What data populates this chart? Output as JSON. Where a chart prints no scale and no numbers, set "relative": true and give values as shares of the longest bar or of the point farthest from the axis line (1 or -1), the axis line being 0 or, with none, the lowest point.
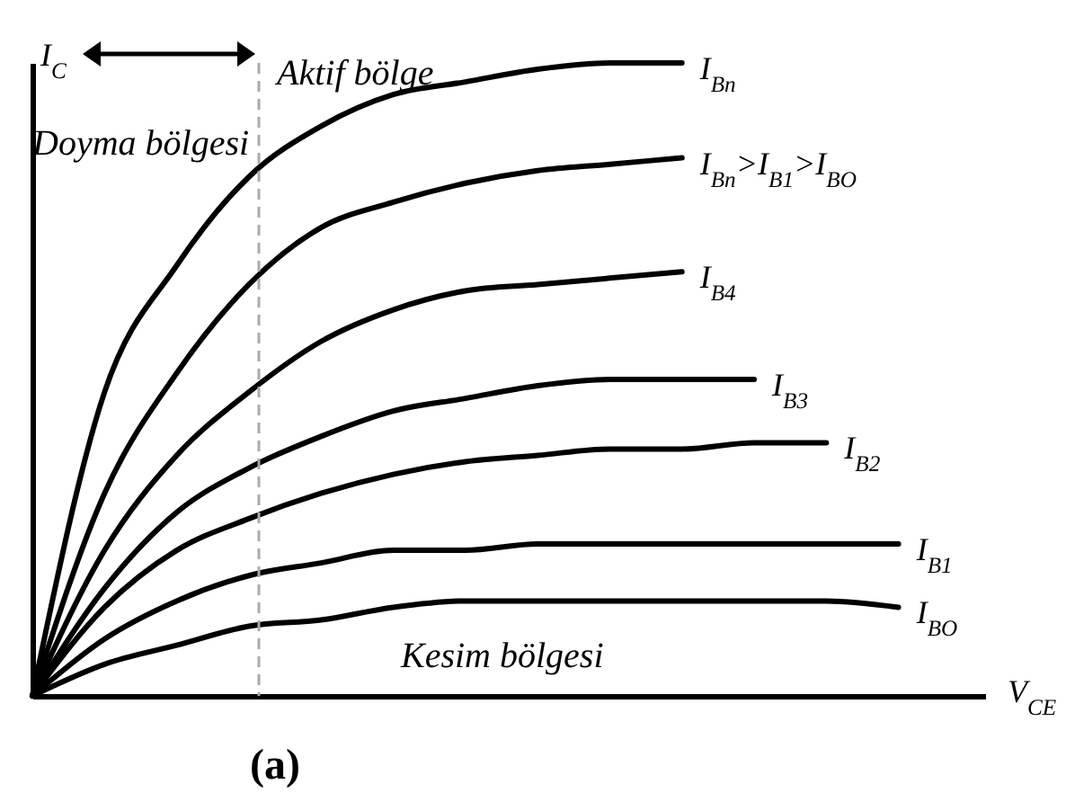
{
  "chart_data": {
    "type": "line",
    "relative": true,
    "title": "(a)",
    "xlabel": "V$_{CE}$",
    "ylabel": "I$_{C}$",
    "categories": [
      null,
      null,
      null,
      null,
      null,
      null,
      null,
      null,
      null,
      null,
      null,
      null,
      null
    ],
    "series": [
      {
        "name": "I$_{Bn}$",
        "color": "#000000",
        "values": [
          0,
          0.48,
          0.68,
          0.82,
          0.9,
          0.95,
          0.97,
          0.99,
          1.0,
          1.0,
          null,
          null,
          null
        ]
      },
      {
        "name": "I$_{Bn}$>I$_{B1}$>I$_{BO}$",
        "color": "#000000",
        "values": [
          0,
          0.32,
          0.51,
          0.65,
          0.74,
          0.78,
          0.81,
          0.83,
          0.84,
          0.85,
          null,
          null,
          null
        ]
      },
      {
        "name": "I$_{B4}$",
        "color": "#000000",
        "values": [
          0,
          0.23,
          0.38,
          0.48,
          0.56,
          0.61,
          0.64,
          0.65,
          0.66,
          0.67,
          null,
          null,
          null
        ]
      },
      {
        "name": "I$_{B3}$",
        "color": "#000000",
        "values": [
          0,
          0.17,
          0.29,
          0.36,
          0.41,
          0.45,
          0.47,
          0.49,
          0.5,
          0.5,
          0.5,
          null,
          null
        ]
      },
      {
        "name": "I$_{B2}$",
        "color": "#000000",
        "values": [
          0,
          0.14,
          0.23,
          0.28,
          0.32,
          0.35,
          0.37,
          0.38,
          0.39,
          0.39,
          0.4,
          0.4,
          null
        ]
      },
      {
        "name": "I$_{B1}$",
        "color": "#000000",
        "values": [
          0,
          0.09,
          0.15,
          0.19,
          0.21,
          0.23,
          0.23,
          0.24,
          0.24,
          0.24,
          0.24,
          0.24,
          0.24
        ]
      },
      {
        "name": "I$_{BO}$",
        "color": "#000000",
        "values": [
          0,
          0.05,
          0.08,
          0.11,
          0.12,
          0.14,
          0.15,
          0.15,
          0.15,
          0.15,
          0.15,
          0.15,
          0.14
        ]
      }
    ],
    "annotations": [
      "Doyma bölgesi",
      "Aktif bölge",
      "Kesim bölgesi"
    ],
    "line_style": "solid",
    "marker": "none",
    "grid": false,
    "legend": false
  }
}
